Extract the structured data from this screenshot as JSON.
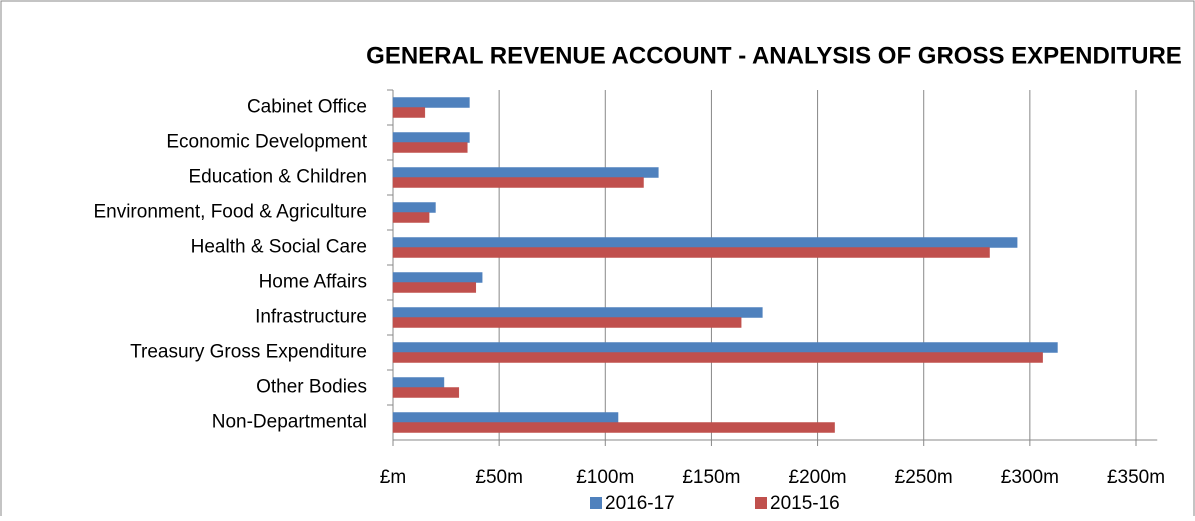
{
  "chart_data": {
    "type": "bar",
    "orientation": "horizontal",
    "title": "GENERAL REVENUE ACCOUNT - ANALYSIS OF GROSS EXPENDITURE",
    "categories": [
      "Cabinet Office",
      "Economic Development",
      "Education & Children",
      "Environment, Food & Agriculture",
      "Health & Social Care",
      "Home Affairs",
      "Infrastructure",
      "Treasury Gross Expenditure",
      "Other Bodies",
      "Non-Departmental"
    ],
    "series": [
      {
        "name": "2016-17",
        "color": "#4f81bd",
        "values": [
          36,
          36,
          125,
          20,
          294,
          42,
          174,
          313,
          24,
          106
        ]
      },
      {
        "name": "2015-16",
        "color": "#c0504d",
        "values": [
          15,
          35,
          118,
          17,
          281,
          39,
          164,
          306,
          31,
          208
        ]
      }
    ],
    "xlim": [
      0,
      360
    ],
    "xticks": [
      {
        "value": 0,
        "label": "£m"
      },
      {
        "value": 50,
        "label": "£50m"
      },
      {
        "value": 100,
        "label": "£100m"
      },
      {
        "value": 150,
        "label": "£150m"
      },
      {
        "value": 200,
        "label": "£200m"
      },
      {
        "value": 250,
        "label": "£250m"
      },
      {
        "value": 300,
        "label": "£300m"
      },
      {
        "value": 350,
        "label": "£350m"
      }
    ],
    "grid": true,
    "legend": "bottom"
  }
}
